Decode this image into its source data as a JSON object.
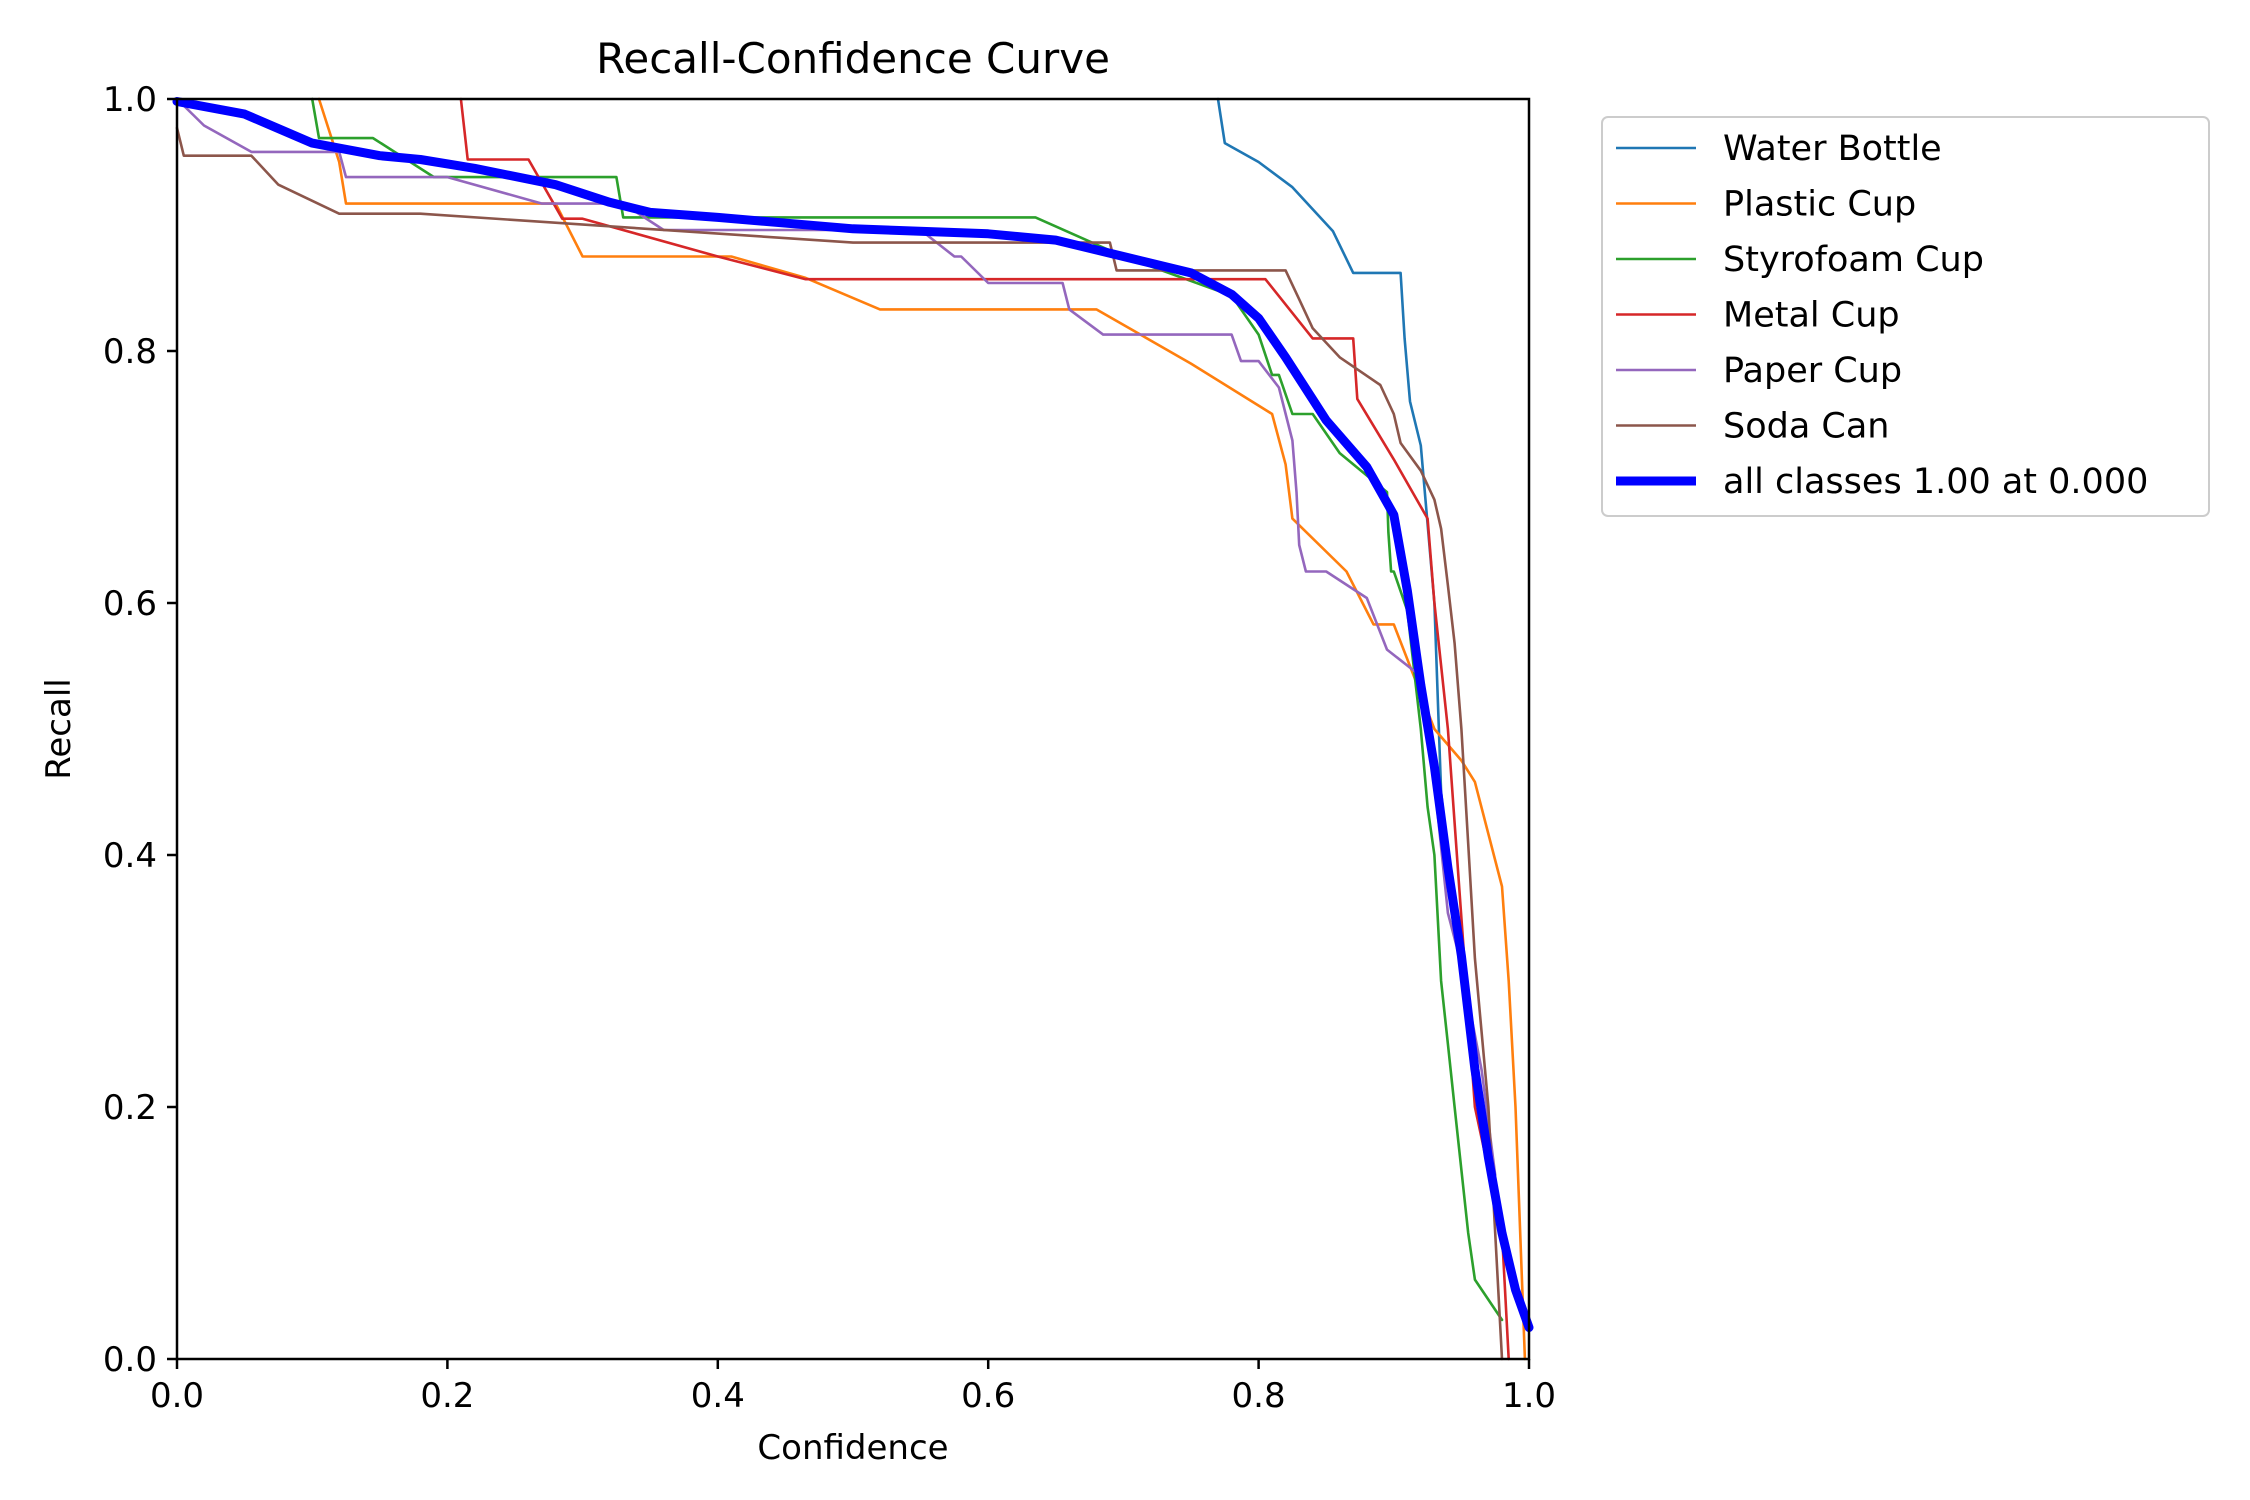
{
  "chart_data": {
    "type": "line",
    "title": "Recall-Confidence Curve",
    "xlabel": "Confidence",
    "ylabel": "Recall",
    "xlim": [
      0,
      1
    ],
    "ylim": [
      0,
      1
    ],
    "xticks": [
      "0.0",
      "0.2",
      "0.4",
      "0.6",
      "0.8",
      "1.0"
    ],
    "yticks": [
      "0.0",
      "0.2",
      "0.4",
      "0.6",
      "0.8",
      "1.0"
    ],
    "legend_position": "outside-top-right",
    "series": [
      {
        "name": "Water Bottle",
        "color": "#1f77b4",
        "width": "thin",
        "x": [
          0.77,
          0.775,
          0.8,
          0.825,
          0.855,
          0.87,
          0.905,
          0.908,
          0.912,
          0.92,
          0.93,
          0.935,
          0.94
        ],
        "y": [
          1.0,
          0.965,
          0.95,
          0.93,
          0.895,
          0.862,
          0.862,
          0.81,
          0.76,
          0.725,
          0.6,
          0.45,
          0.4
        ]
      },
      {
        "name": "Plastic Cup",
        "color": "#ff7f0e",
        "width": "thin",
        "x": [
          0.105,
          0.12,
          0.125,
          0.28,
          0.3,
          0.41,
          0.465,
          0.52,
          0.68,
          0.75,
          0.81,
          0.82,
          0.825,
          0.865,
          0.885,
          0.9,
          0.93,
          0.95,
          0.96,
          0.98,
          0.985,
          0.99,
          0.997
        ],
        "y": [
          1.0,
          0.95,
          0.917,
          0.917,
          0.875,
          0.875,
          0.858,
          0.833,
          0.833,
          0.79,
          0.75,
          0.71,
          0.667,
          0.625,
          0.583,
          0.583,
          0.5,
          0.475,
          0.458,
          0.375,
          0.3,
          0.2,
          0.0
        ]
      },
      {
        "name": "Styrofoam Cup",
        "color": "#2ca02c",
        "width": "thin",
        "x": [
          0.1,
          0.105,
          0.145,
          0.19,
          0.275,
          0.325,
          0.33,
          0.34,
          0.45,
          0.635,
          0.7,
          0.78,
          0.8,
          0.81,
          0.815,
          0.825,
          0.84,
          0.86,
          0.895,
          0.896,
          0.898,
          0.9,
          0.91,
          0.92,
          0.925,
          0.93,
          0.935,
          0.94,
          0.945,
          0.95,
          0.955,
          0.96,
          0.98
        ],
        "y": [
          1.0,
          0.969,
          0.969,
          0.938,
          0.938,
          0.938,
          0.906,
          0.906,
          0.906,
          0.906,
          0.875,
          0.844,
          0.813,
          0.781,
          0.781,
          0.75,
          0.75,
          0.719,
          0.688,
          0.656,
          0.625,
          0.625,
          0.594,
          0.5,
          0.438,
          0.4,
          0.3,
          0.25,
          0.2,
          0.15,
          0.1,
          0.063,
          0.031
        ]
      },
      {
        "name": "Metal Cup",
        "color": "#d62728",
        "width": "thin",
        "x": [
          0.21,
          0.215,
          0.26,
          0.285,
          0.3,
          0.4,
          0.465,
          0.56,
          0.7,
          0.805,
          0.84,
          0.87,
          0.873,
          0.9,
          0.925,
          0.93,
          0.94,
          0.95,
          0.96,
          0.98,
          0.985
        ],
        "y": [
          1.0,
          0.952,
          0.952,
          0.905,
          0.905,
          0.875,
          0.857,
          0.857,
          0.857,
          0.857,
          0.81,
          0.81,
          0.762,
          0.714,
          0.667,
          0.6,
          0.5,
          0.35,
          0.2,
          0.1,
          0.0
        ]
      },
      {
        "name": "Paper Cup",
        "color": "#9467bd",
        "width": "thin",
        "x": [
          0.0,
          0.02,
          0.055,
          0.12,
          0.125,
          0.2,
          0.27,
          0.33,
          0.36,
          0.55,
          0.575,
          0.58,
          0.6,
          0.655,
          0.66,
          0.685,
          0.78,
          0.787,
          0.8,
          0.815,
          0.825,
          0.828,
          0.83,
          0.835,
          0.85,
          0.88,
          0.895,
          0.92,
          0.93,
          0.94,
          0.95,
          0.965,
          0.975
        ],
        "y": [
          1.0,
          0.979,
          0.958,
          0.958,
          0.938,
          0.938,
          0.917,
          0.917,
          0.896,
          0.896,
          0.875,
          0.875,
          0.854,
          0.854,
          0.833,
          0.813,
          0.813,
          0.792,
          0.792,
          0.771,
          0.729,
          0.688,
          0.646,
          0.625,
          0.625,
          0.604,
          0.563,
          0.542,
          0.458,
          0.354,
          0.313,
          0.229,
          0.146
        ]
      },
      {
        "name": "Soda Can",
        "color": "#8c564b",
        "width": "thin",
        "x": [
          0.0,
          0.005,
          0.055,
          0.075,
          0.12,
          0.18,
          0.5,
          0.69,
          0.695,
          0.75,
          0.82,
          0.83,
          0.84,
          0.86,
          0.89,
          0.9,
          0.905,
          0.92,
          0.93,
          0.935,
          0.94,
          0.945,
          0.95,
          0.955,
          0.96,
          0.97,
          0.975,
          0.98
        ],
        "y": [
          0.977,
          0.955,
          0.955,
          0.932,
          0.909,
          0.909,
          0.886,
          0.886,
          0.864,
          0.864,
          0.864,
          0.841,
          0.818,
          0.795,
          0.773,
          0.75,
          0.727,
          0.705,
          0.682,
          0.659,
          0.614,
          0.568,
          0.5,
          0.409,
          0.318,
          0.2,
          0.1,
          0.0
        ]
      },
      {
        "name": "all classes 1.00 at 0.000",
        "color": "#0000ff",
        "width": "thick",
        "x": [
          0.0,
          0.05,
          0.1,
          0.15,
          0.18,
          0.22,
          0.28,
          0.32,
          0.35,
          0.4,
          0.5,
          0.6,
          0.65,
          0.7,
          0.75,
          0.78,
          0.8,
          0.82,
          0.85,
          0.88,
          0.9,
          0.91,
          0.92,
          0.93,
          0.94,
          0.95,
          0.96,
          0.97,
          0.98,
          0.99,
          1.0
        ],
        "y": [
          0.998,
          0.988,
          0.965,
          0.955,
          0.952,
          0.945,
          0.932,
          0.918,
          0.91,
          0.906,
          0.897,
          0.893,
          0.888,
          0.875,
          0.862,
          0.845,
          0.826,
          0.795,
          0.745,
          0.708,
          0.67,
          0.61,
          0.535,
          0.47,
          0.39,
          0.32,
          0.23,
          0.16,
          0.1,
          0.055,
          0.025
        ]
      }
    ]
  }
}
